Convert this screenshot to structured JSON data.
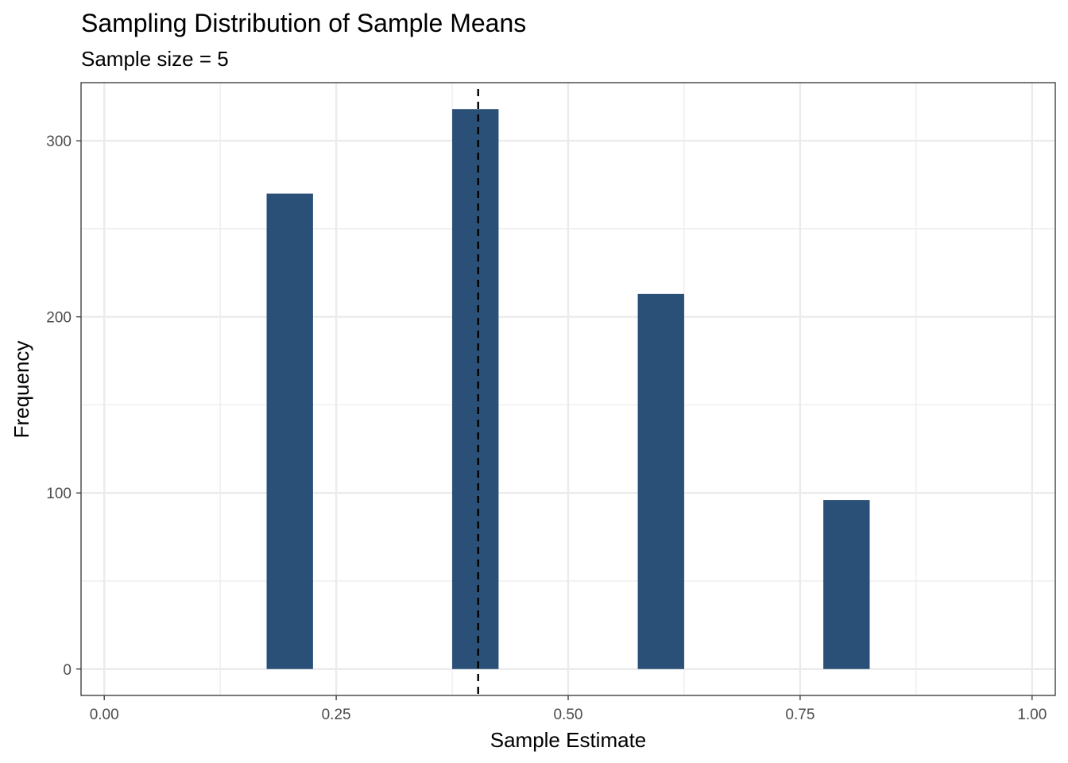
{
  "chart_data": {
    "type": "bar",
    "title": "Sampling Distribution of Sample Means",
    "subtitle": "Sample size = 5",
    "xlabel": "Sample Estimate",
    "ylabel": "Frequency",
    "x": [
      0.2,
      0.4,
      0.6,
      0.8
    ],
    "values": [
      270,
      318,
      213,
      96
    ],
    "bar_width": 0.05,
    "reference_line": {
      "x": 0.403,
      "style": "dashed"
    },
    "xlim": [
      -0.025,
      1.025
    ],
    "ylim": [
      -15,
      333
    ],
    "x_ticks": [
      {
        "value": 0.0,
        "label": "0.00"
      },
      {
        "value": 0.25,
        "label": "0.25"
      },
      {
        "value": 0.5,
        "label": "0.50"
      },
      {
        "value": 0.75,
        "label": "0.75"
      },
      {
        "value": 1.0,
        "label": "1.00"
      }
    ],
    "y_ticks": [
      {
        "value": 0,
        "label": "0"
      },
      {
        "value": 100,
        "label": "100"
      },
      {
        "value": 200,
        "label": "200"
      },
      {
        "value": 300,
        "label": "300"
      }
    ],
    "grid": true,
    "colors": {
      "bar": "#2b5077",
      "reference_line": "#000000",
      "grid": "#ebebeb",
      "panel_border": "#333333"
    }
  }
}
